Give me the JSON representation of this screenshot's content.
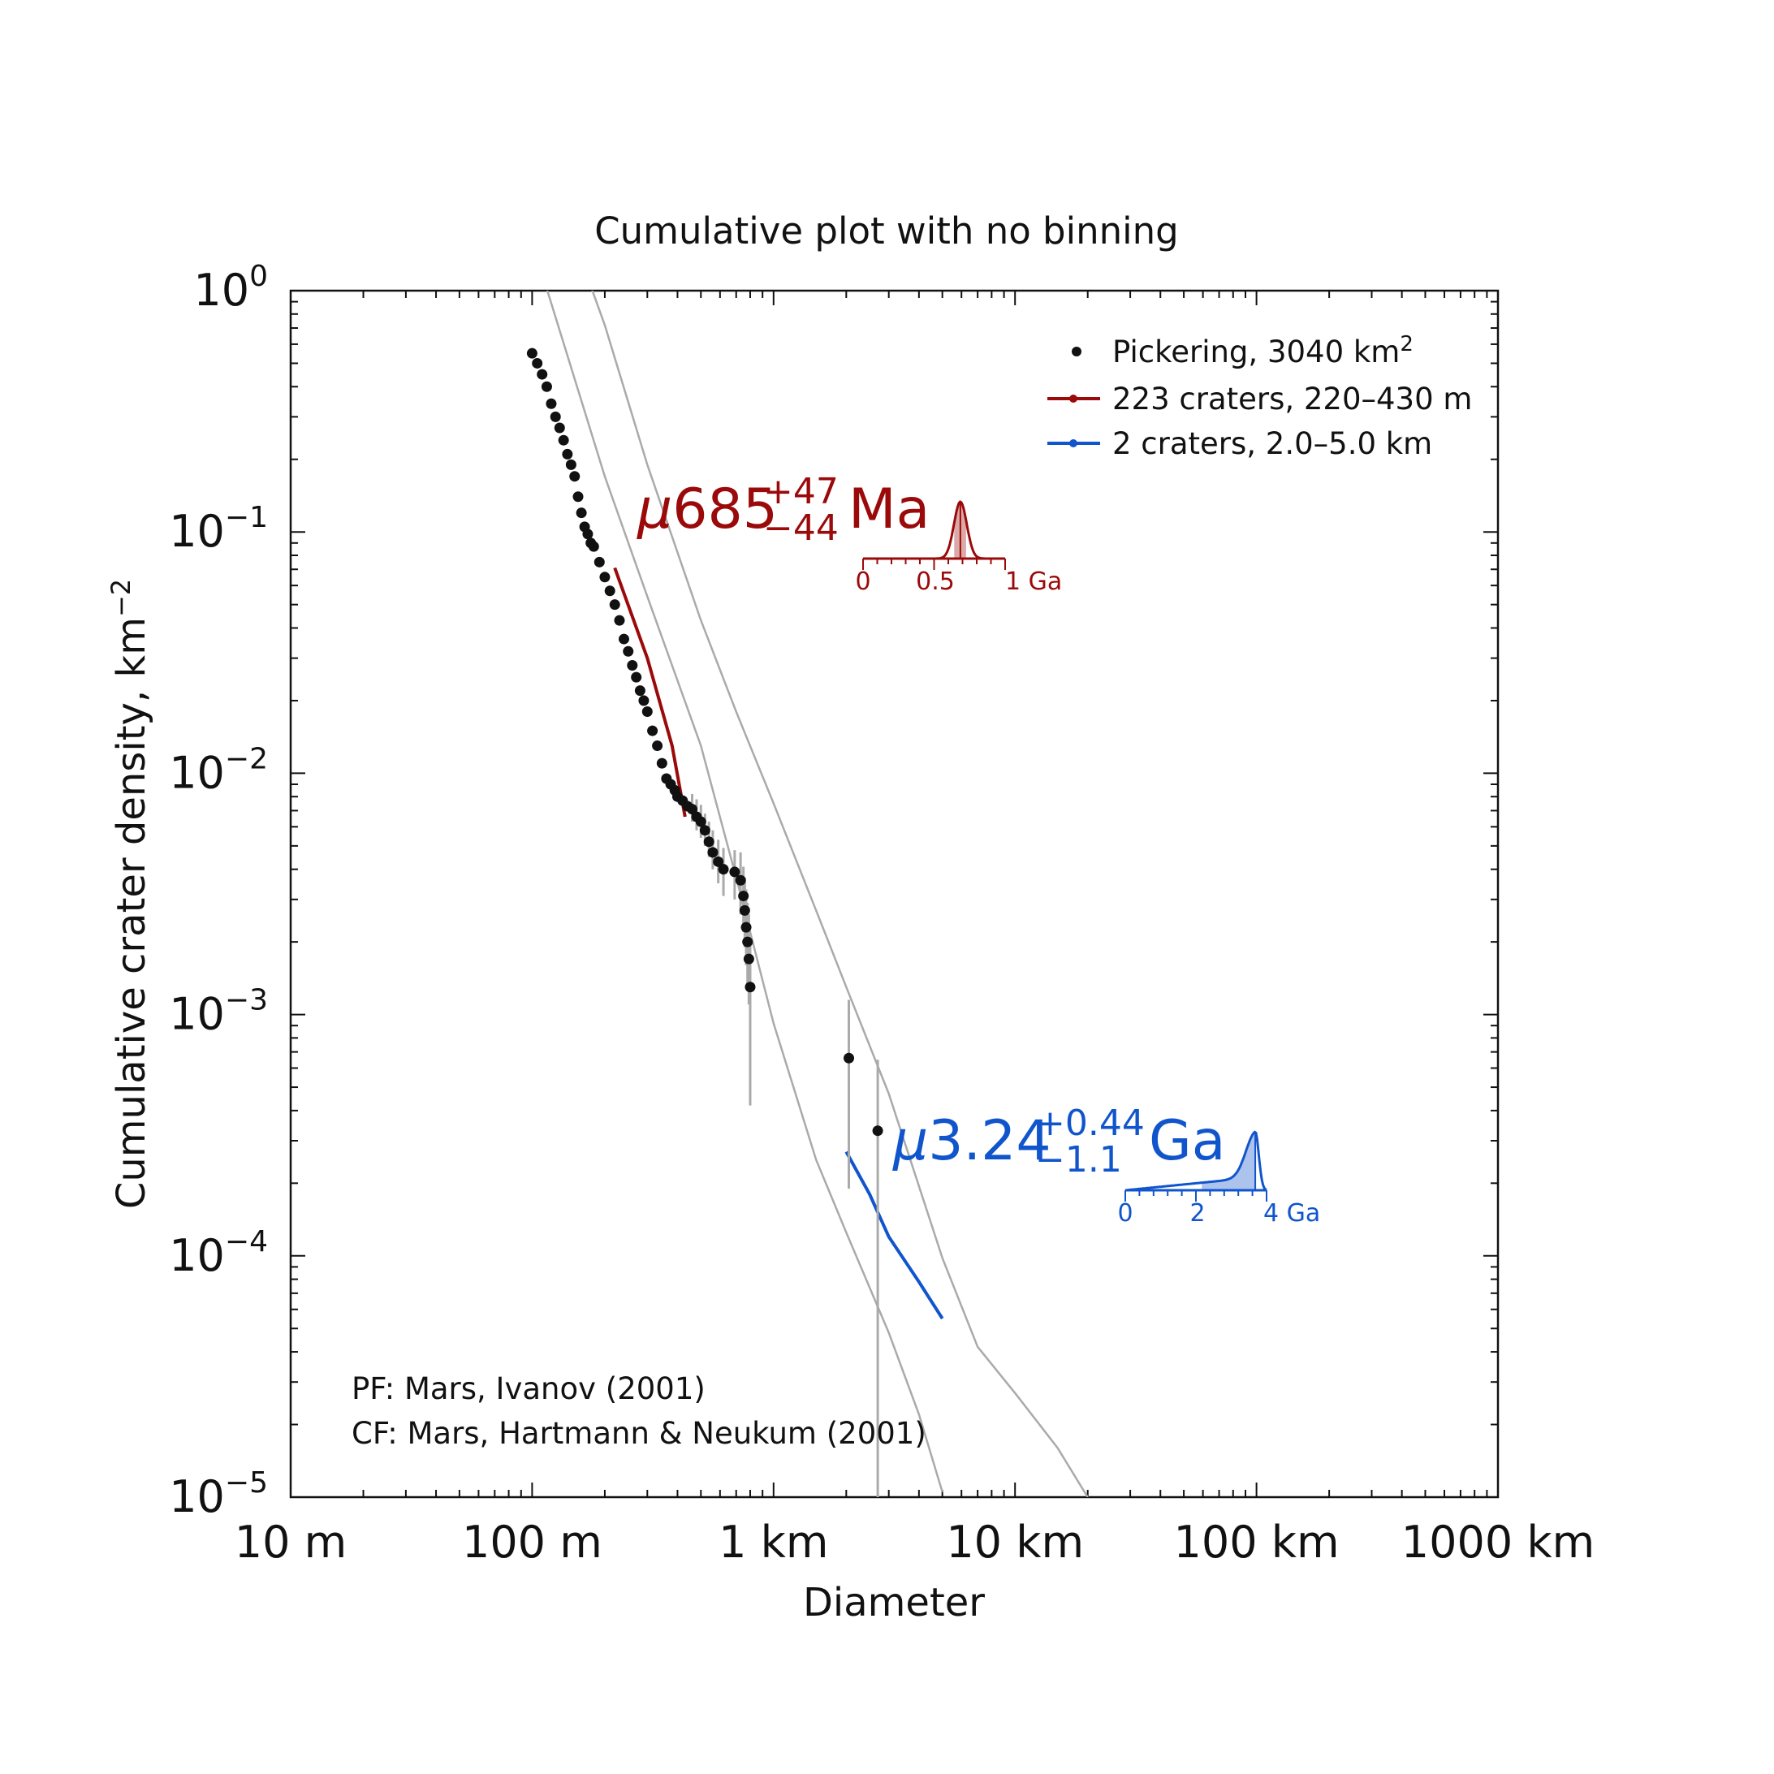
{
  "chart_data": {
    "type": "scatter",
    "title": "Cumulative plot with no binning",
    "xlabel": "Diameter",
    "ylabel": "Cumulative crater density, km",
    "ylabel_exponent": "−2",
    "xscale": "log",
    "yscale": "log",
    "xlim_km": [
      0.01,
      1000
    ],
    "ylim": [
      1e-05,
      1
    ],
    "x_tick_labels": [
      "10 m",
      "100 m",
      "1 km",
      "10 km",
      "100 km",
      "1000 km"
    ],
    "y_tick_labels": [
      {
        "base": "10",
        "exp": "−5"
      },
      {
        "base": "10",
        "exp": "−4"
      },
      {
        "base": "10",
        "exp": "−3"
      },
      {
        "base": "10",
        "exp": "−2"
      },
      {
        "base": "10",
        "exp": "−1"
      },
      {
        "base": "10",
        "exp": "0"
      }
    ],
    "legend_placement": "top-right",
    "legend": [
      {
        "label": "Pickering, 3040 km",
        "sup": "2",
        "color": "#111111",
        "marker": "dot"
      },
      {
        "label": "223 craters, 220–430 m",
        "sup": "",
        "color": "#9b0a0a",
        "marker": "line"
      },
      {
        "label": "2 craters, 2.0–5.0 km",
        "sup": "",
        "color": "#1155cc",
        "marker": "line"
      }
    ],
    "annotations": {
      "pf": "PF: Mars, Ivanov (2001)",
      "cf": "CF: Mars, Hartmann & Neukum (2001)"
    },
    "colors": {
      "points": "#111111",
      "errorbars": "#aaaaaa",
      "isochrons": "#aaaaaa",
      "red_fit": "#9b0a0a",
      "blue_fit": "#1155cc"
    },
    "isochrons": [
      {
        "points": [
          [
            0.1,
            1.6
          ],
          [
            0.2,
            0.17
          ],
          [
            0.3,
            0.054
          ],
          [
            0.5,
            0.013
          ],
          [
            0.7,
            0.0037
          ],
          [
            1.0,
            0.00092
          ],
          [
            1.5,
            0.00025
          ],
          [
            2.0,
            0.000125
          ],
          [
            3.0,
            4.8e-05
          ],
          [
            4.0,
            2.2e-05
          ],
          [
            5.0,
            1.05e-05
          ]
        ]
      },
      {
        "points": [
          [
            0.15,
            1.6
          ],
          [
            0.2,
            0.72
          ],
          [
            0.3,
            0.19
          ],
          [
            0.5,
            0.043
          ],
          [
            0.7,
            0.018
          ],
          [
            1.0,
            0.0075
          ],
          [
            1.5,
            0.0027
          ],
          [
            2.0,
            0.0013
          ],
          [
            3.0,
            0.00047
          ],
          [
            5.0,
            9.8e-05
          ],
          [
            7.0,
            4.2e-05
          ],
          [
            10.0,
            2.7e-05
          ],
          [
            15.0,
            1.6e-05
          ],
          [
            20.0,
            1e-05
          ]
        ]
      }
    ],
    "fits": [
      {
        "name": "223 craters, 220–430 m",
        "color": "#9b0a0a",
        "points": [
          [
            0.22,
            0.071
          ],
          [
            0.3,
            0.03
          ],
          [
            0.38,
            0.013
          ],
          [
            0.43,
            0.0066
          ]
        ]
      },
      {
        "name": "2 craters, 2.0–5.0 km",
        "color": "#1155cc",
        "points": [
          [
            2.0,
            0.00027
          ],
          [
            2.5,
            0.00018
          ],
          [
            3.0,
            0.00012
          ],
          [
            4.0,
            7.8e-05
          ],
          [
            5.0,
            5.5e-05
          ]
        ]
      }
    ],
    "series": [
      {
        "name": "Pickering, 3040 km2",
        "x_km": [
          0.1,
          0.105,
          0.11,
          0.115,
          0.12,
          0.125,
          0.13,
          0.135,
          0.14,
          0.145,
          0.15,
          0.155,
          0.16,
          0.165,
          0.17,
          0.175,
          0.18,
          0.19,
          0.2,
          0.21,
          0.22,
          0.23,
          0.24,
          0.25,
          0.26,
          0.27,
          0.28,
          0.29,
          0.3,
          0.315,
          0.33,
          0.345,
          0.36,
          0.375,
          0.39,
          0.4,
          0.42,
          0.44,
          0.46,
          0.48,
          0.5,
          0.52,
          0.54,
          0.56,
          0.59,
          0.62,
          0.69,
          0.73,
          0.75,
          0.76,
          0.77,
          0.78,
          0.79,
          0.8,
          2.05,
          2.7
        ],
        "y": [
          0.55,
          0.5,
          0.45,
          0.4,
          0.34,
          0.3,
          0.27,
          0.24,
          0.21,
          0.19,
          0.17,
          0.14,
          0.12,
          0.105,
          0.098,
          0.09,
          0.087,
          0.075,
          0.065,
          0.057,
          0.05,
          0.043,
          0.036,
          0.032,
          0.028,
          0.025,
          0.022,
          0.02,
          0.018,
          0.015,
          0.013,
          0.011,
          0.0095,
          0.009,
          0.0085,
          0.008,
          0.0077,
          0.0073,
          0.0071,
          0.0066,
          0.0063,
          0.0058,
          0.0052,
          0.0047,
          0.0043,
          0.004,
          0.0039,
          0.0036,
          0.0031,
          0.0027,
          0.0023,
          0.002,
          0.0017,
          0.0013,
          0.00066,
          0.00033
        ],
        "y_err_low": [
          null,
          null,
          null,
          null,
          null,
          null,
          null,
          null,
          null,
          null,
          null,
          null,
          null,
          null,
          null,
          null,
          null,
          null,
          null,
          null,
          null,
          null,
          null,
          null,
          null,
          null,
          null,
          null,
          null,
          null,
          null,
          null,
          null,
          null,
          null,
          null,
          null,
          null,
          0.0063,
          0.0058,
          0.0054,
          0.005,
          0.0045,
          0.004,
          0.0035,
          0.0031,
          0.003,
          0.0026,
          0.0022,
          0.0019,
          0.0016,
          0.0013,
          0.0011,
          0.00042,
          0.00019,
          1e-05
        ],
        "y_err_high": [
          null,
          null,
          null,
          null,
          null,
          null,
          null,
          null,
          null,
          null,
          null,
          null,
          null,
          null,
          null,
          null,
          null,
          null,
          null,
          null,
          null,
          null,
          null,
          null,
          null,
          null,
          null,
          null,
          null,
          null,
          null,
          null,
          null,
          null,
          null,
          null,
          null,
          null,
          0.0082,
          0.0078,
          0.0074,
          0.0068,
          0.0063,
          0.0058,
          0.0053,
          0.0049,
          0.0048,
          0.0047,
          0.0041,
          0.0037,
          0.0033,
          0.0029,
          0.0026,
          0.0021,
          0.00115,
          0.00065
        ]
      }
    ],
    "age_red": {
      "prefix": "μ",
      "value": "685",
      "plus": "+47",
      "minus": "−44",
      "unit": "Ma",
      "color": "#9b0a0a",
      "axis_ticks": [
        "0",
        "0.5",
        "1 Ga"
      ],
      "axis_range_ga": [
        0,
        1
      ],
      "peak_ga": 0.685,
      "interval_ga": [
        0.641,
        0.732
      ]
    },
    "age_blue": {
      "prefix": "μ",
      "value": "3.24",
      "plus": "+0.44",
      "minus": "−1.1",
      "unit": "Ga",
      "color": "#1155cc",
      "axis_ticks": [
        "0",
        "2",
        "4 Ga"
      ],
      "axis_range_ga": [
        0,
        4
      ],
      "peak_ga": 3.68,
      "interval_ga": [
        2.14,
        3.68
      ]
    }
  }
}
